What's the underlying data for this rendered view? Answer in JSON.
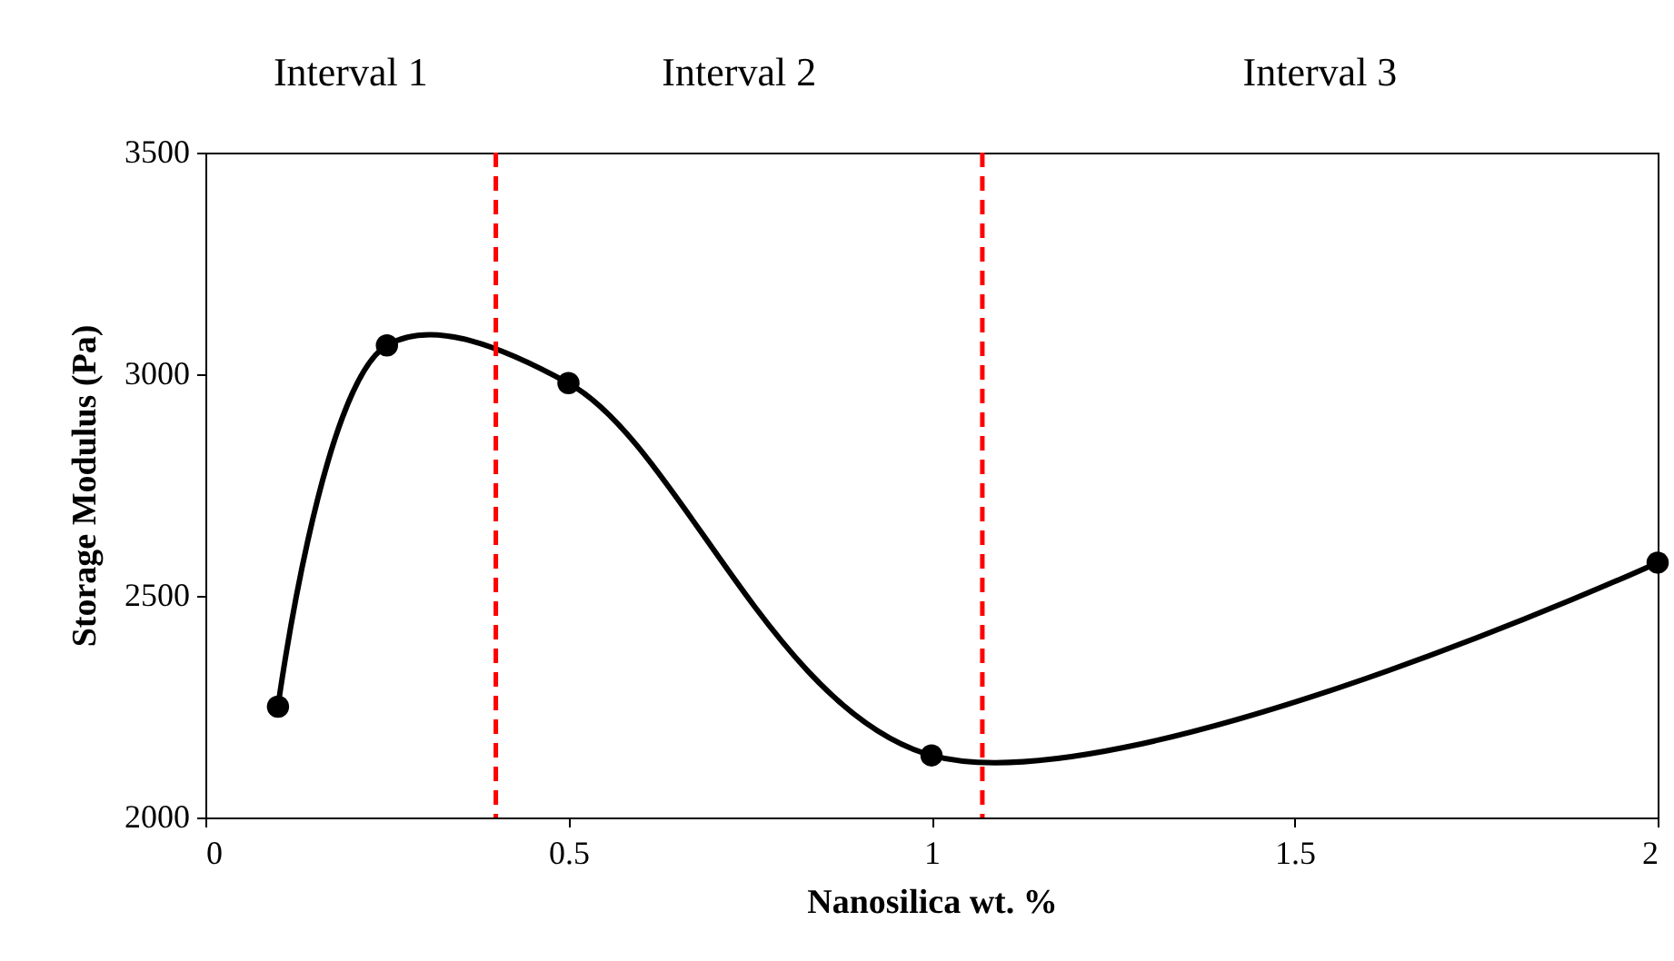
{
  "chart_data": {
    "type": "line",
    "xlabel": "Nanosilica wt. %",
    "ylabel": "Storage Modulus (Pa)",
    "x": [
      0.1,
      0.25,
      0.5,
      1,
      2
    ],
    "series": [
      {
        "color": "#000000",
        "values": [
          2250,
          3065,
          2980,
          2140,
          2575
        ]
      }
    ],
    "xlim": [
      0,
      2
    ],
    "xticks": [
      0,
      0.5,
      1,
      1.5,
      2
    ],
    "ylim": [
      2000,
      3500
    ],
    "yticks": [
      2000,
      2500,
      3000,
      3500
    ],
    "marker": "circle",
    "line_style": "solid",
    "grid": false,
    "ref_lines": [
      {
        "axis": "x",
        "value": 0.4,
        "color": "#ff0000",
        "line_style": "dashed"
      },
      {
        "axis": "x",
        "value": 1.07,
        "color": "#ff0000",
        "line_style": "dashed"
      }
    ],
    "annotations": [
      "Interval 1",
      "Interval 2",
      "Interval 3"
    ]
  }
}
